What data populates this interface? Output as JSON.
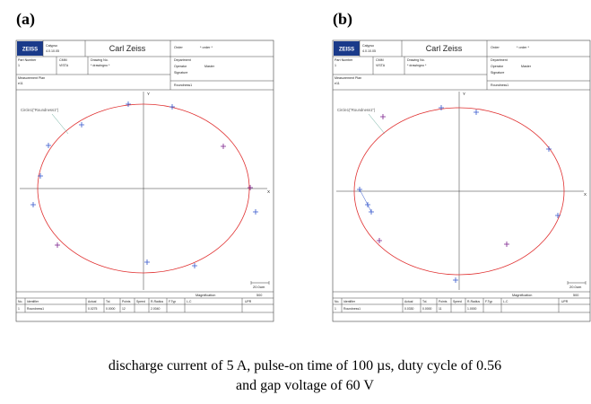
{
  "panels": [
    {
      "label": "(a)",
      "header": {
        "logo": "ZEISS",
        "software": [
          "Calypso",
          "4.0.10.05"
        ],
        "company": "Carl Zeiss",
        "order_label": "Order",
        "order": "* order *",
        "part_label": "Part Number",
        "part": "1",
        "cmm_label": "CMM",
        "cmm": "VISTA",
        "drawing_label": "Drawing No.",
        "drawing": "* drawingno *",
        "department": "Department",
        "operator_label": "Operator",
        "operator": "Master",
        "signature": "Signature",
        "plan_label": "Measurement Plan",
        "plan": "e11",
        "feature": "Roundness1"
      },
      "plot": {
        "y_axis": "Y",
        "x_axis": "X",
        "feature_label": "Circle1(\"Roundness1\")",
        "scale": "20.0um",
        "magnification_label": "Magnification",
        "magnification": "500"
      },
      "table": {
        "columns": [
          "No.",
          "Identifier",
          "Actual",
          "Tol.",
          "Points",
          "Speed",
          "R-Radius",
          "F.Typ",
          "L-C",
          "UPR"
        ],
        "row": {
          "no": "1",
          "identifier": "Roundness1",
          "actual": "0.0275",
          "tol": "0.0000",
          "points": "12",
          "r_radius": "2.0040"
        }
      }
    },
    {
      "label": "(b)",
      "header": {
        "logo": "ZEISS",
        "software": [
          "Calypso",
          "4.0.10.05"
        ],
        "company": "Carl Zeiss",
        "order_label": "Order",
        "order": "* order *",
        "part_label": "Part Number",
        "part": "1",
        "cmm_label": "CMM",
        "cmm": "VISTA",
        "drawing_label": "Drawing No.",
        "drawing": "* drawingno *",
        "department": "Department",
        "operator_label": "Operator",
        "operator": "Master",
        "signature": "Signature",
        "plan_label": "Measurement Plan",
        "plan": "e11",
        "feature": "Roundness1"
      },
      "plot": {
        "y_axis": "Y",
        "x_axis": "X",
        "feature_label": "Circle1(\"Roundness1\")",
        "scale": "20.0um",
        "magnification_label": "Magnification",
        "magnification": "500"
      },
      "table": {
        "columns": [
          "No.",
          "Identifier",
          "Actual",
          "Tol.",
          "Points",
          "Speed",
          "R-Radius",
          "F.Typ",
          "L-C",
          "UPR"
        ],
        "row": {
          "no": "1",
          "identifier": "Roundness1",
          "actual": "0.0330",
          "tol": "0.0000",
          "points": "11",
          "r_radius": "1.0000"
        }
      }
    }
  ],
  "caption": [
    "discharge current of 5 A, pulse-on time of 100 µs, duty cycle of 0.56",
    "and gap voltage of 60 V"
  ]
}
